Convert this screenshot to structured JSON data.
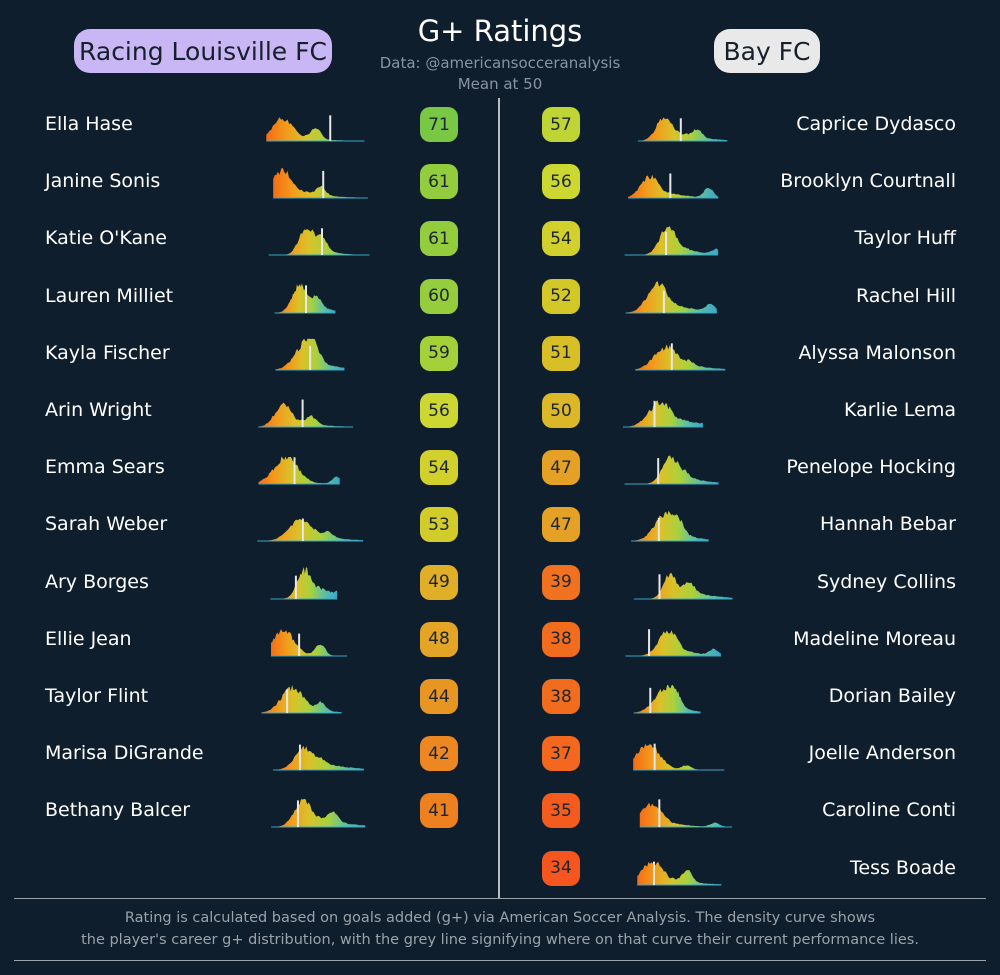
{
  "header": {
    "title": "G+ Ratings",
    "subtitle": "Data: @americansocceranalysis",
    "note": "Mean at 50",
    "team_left": "Racing Louisville FC",
    "team_right": "Bay FC"
  },
  "colors": {
    "background": "#0f1e2c",
    "team_left_pill": "#c9b6f5",
    "team_right_pill": "#e9e9e9",
    "divider": "#b9bec4",
    "current_marker": "#e8e8e8",
    "density_gradient": [
      "#f46d15",
      "#f39a1c",
      "#d9c22a",
      "#a9d13d",
      "#5cc1a0",
      "#3aa6c9"
    ]
  },
  "footer": {
    "line1": "Rating is calculated based on goals added (g+) via American Soccer Analysis. The density curve shows",
    "line2": "the player's career g+ distribution, with the grey line signifying where on that curve their current performance lies."
  },
  "chart_data": {
    "type": "table",
    "scale_mean": 50,
    "columns": [
      "player",
      "g+ career density",
      "rating"
    ],
    "teams": [
      {
        "name": "Racing Louisville FC",
        "players": [
          {
            "name": "Ella Hase",
            "rating": 71
          },
          {
            "name": "Janine Sonis",
            "rating": 61
          },
          {
            "name": "Katie O'Kane",
            "rating": 61
          },
          {
            "name": "Lauren Milliet",
            "rating": 60
          },
          {
            "name": "Kayla Fischer",
            "rating": 59
          },
          {
            "name": "Arin Wright",
            "rating": 56
          },
          {
            "name": "Emma Sears",
            "rating": 54
          },
          {
            "name": "Sarah Weber",
            "rating": 53
          },
          {
            "name": "Ary Borges",
            "rating": 49
          },
          {
            "name": "Ellie Jean",
            "rating": 48
          },
          {
            "name": "Taylor Flint",
            "rating": 44
          },
          {
            "name": "Marisa DiGrande",
            "rating": 42
          },
          {
            "name": "Bethany Balcer",
            "rating": 41
          }
        ]
      },
      {
        "name": "Bay FC",
        "players": [
          {
            "name": "Caprice Dydasco",
            "rating": 57
          },
          {
            "name": "Brooklyn Courtnall",
            "rating": 56
          },
          {
            "name": "Taylor Huff",
            "rating": 54
          },
          {
            "name": "Rachel Hill",
            "rating": 52
          },
          {
            "name": "Alyssa Malonson",
            "rating": 51
          },
          {
            "name": "Karlie Lema",
            "rating": 50
          },
          {
            "name": "Penelope Hocking",
            "rating": 47
          },
          {
            "name": "Hannah Bebar",
            "rating": 47
          },
          {
            "name": "Sydney Collins",
            "rating": 39
          },
          {
            "name": "Madeline Moreau",
            "rating": 38
          },
          {
            "name": "Dorian Bailey",
            "rating": 38
          },
          {
            "name": "Joelle Anderson",
            "rating": 37
          },
          {
            "name": "Caroline Conti",
            "rating": 35
          },
          {
            "name": "Tess Boade",
            "rating": 34
          }
        ]
      }
    ]
  }
}
